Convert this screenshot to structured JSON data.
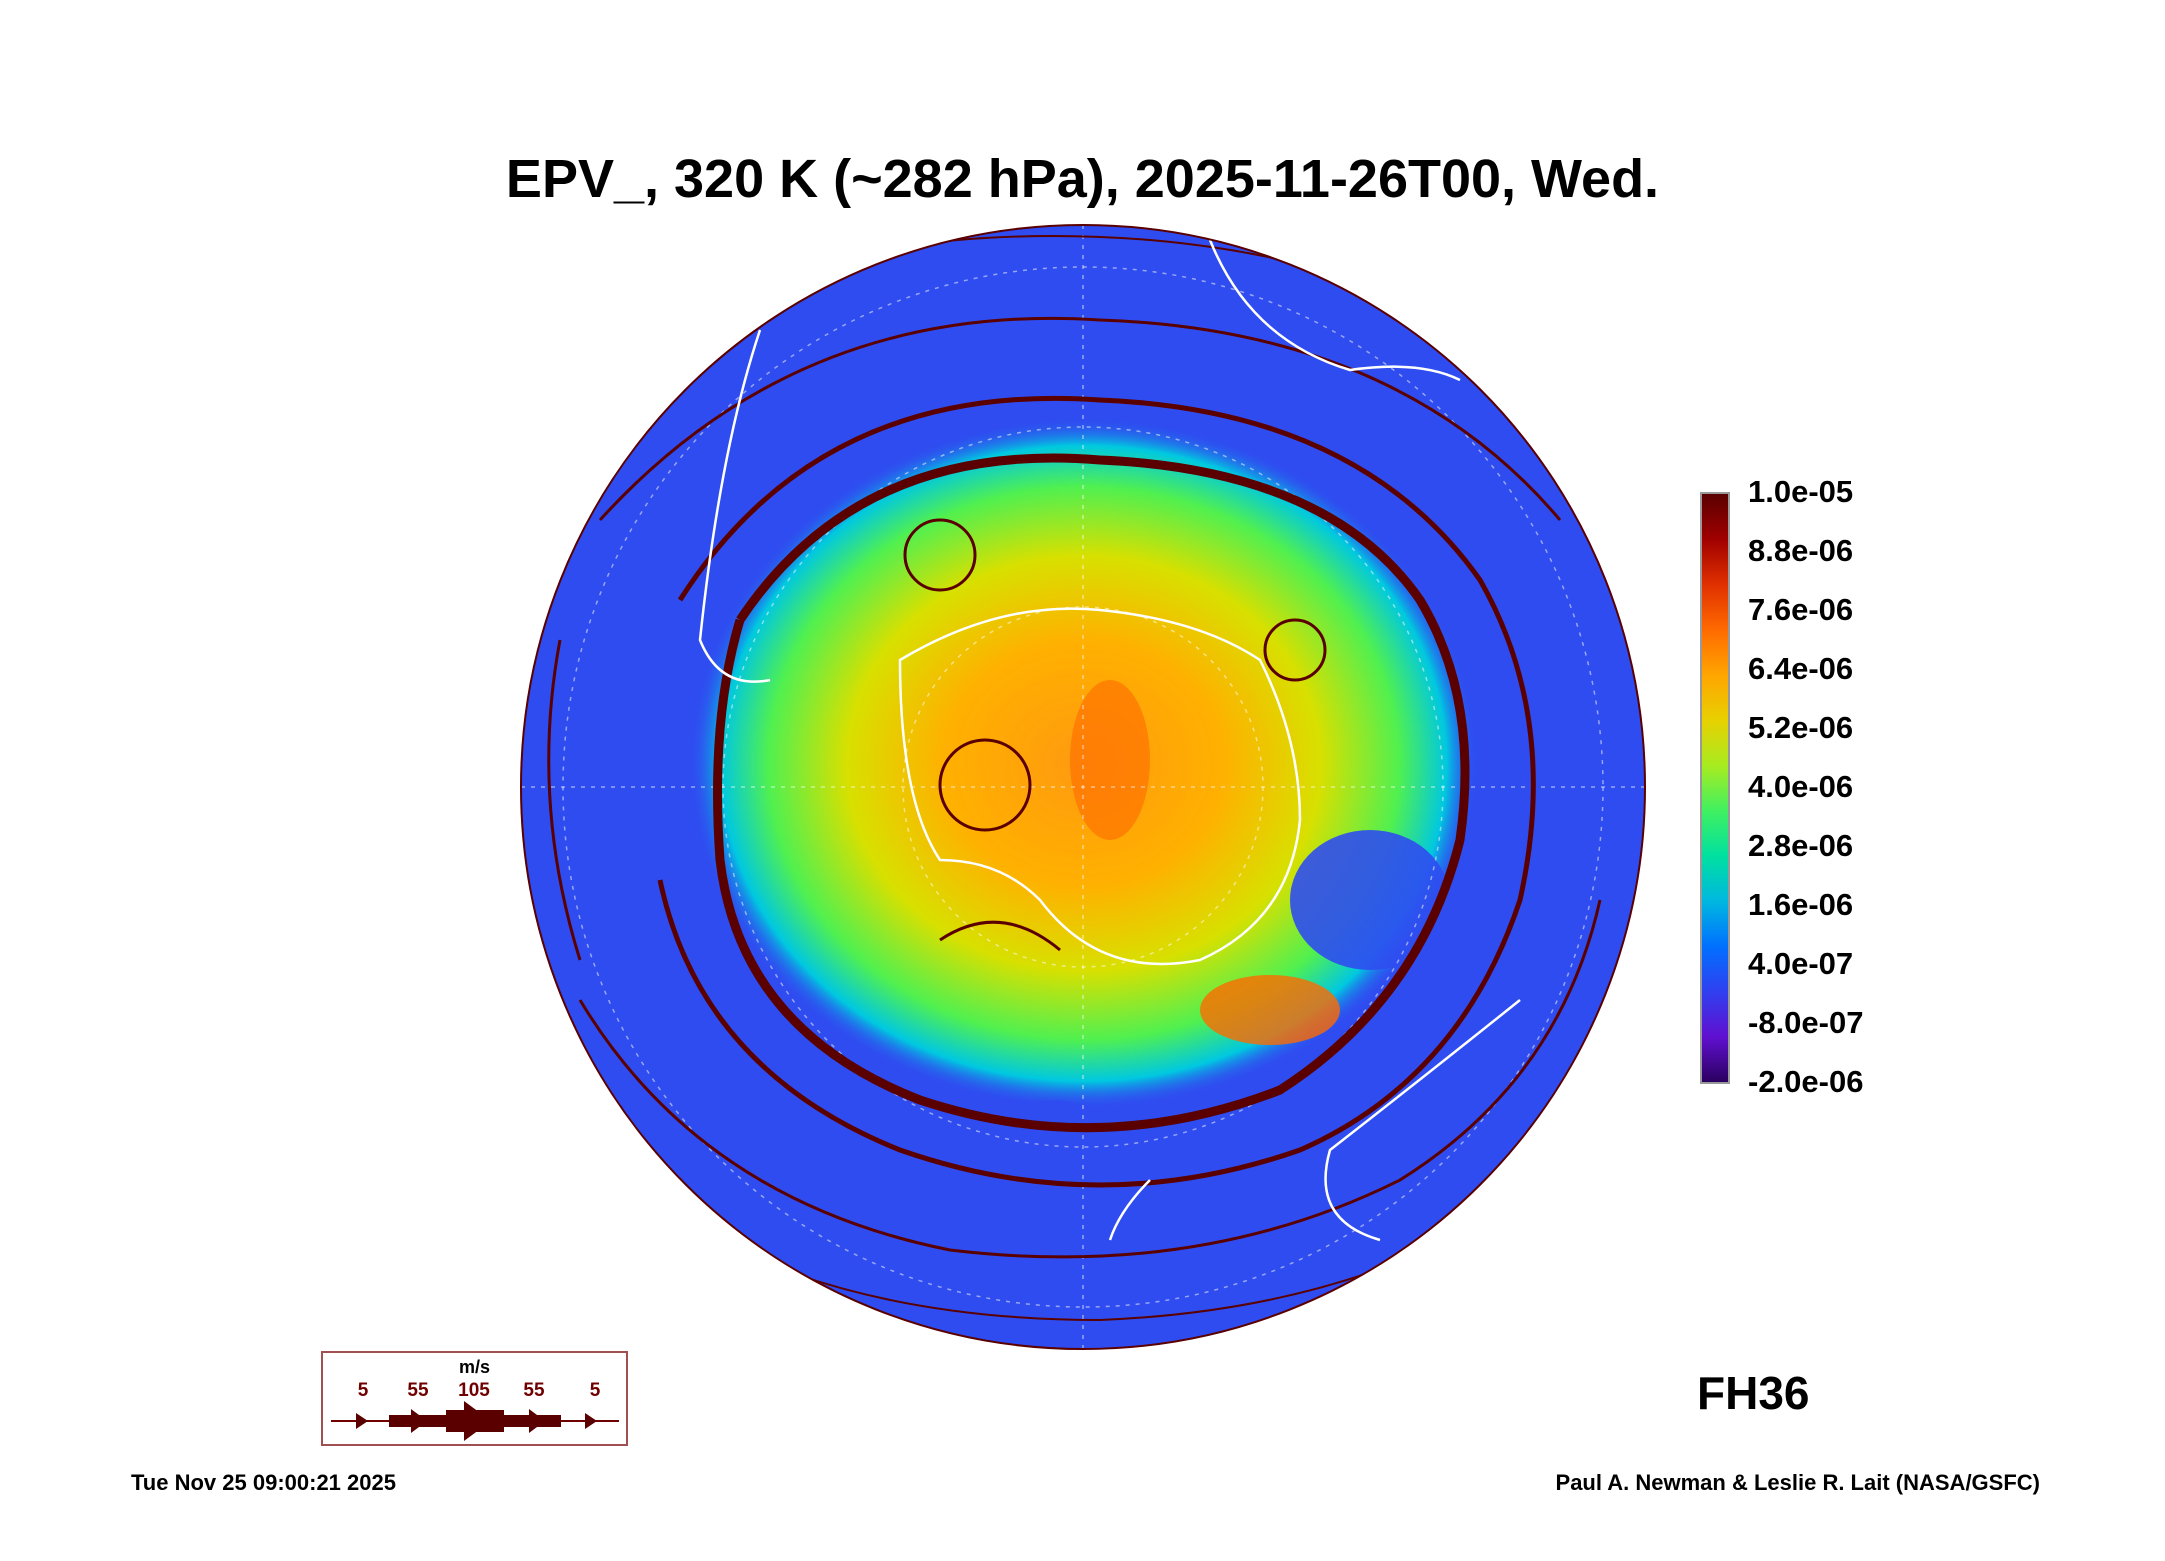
{
  "chart_data": {
    "type": "heatmap",
    "title": "EPV_, 320 K (~282 hPa), 2025-11-26T00, Wed.",
    "colorbar": {
      "ticks": [
        "1.0e-05",
        "8.8e-06",
        "7.6e-06",
        "6.4e-06",
        "5.2e-06",
        "4.0e-06",
        "2.8e-06",
        "1.6e-06",
        "4.0e-07",
        "-8.0e-07",
        "-2.0e-06"
      ],
      "range": [
        -2e-06,
        1e-05
      ],
      "placement": "right"
    },
    "wind_legend": {
      "unit": "m/s",
      "speeds": [
        "5",
        "55",
        "105",
        "55",
        "5"
      ]
    },
    "forecast_hour": "FH36",
    "colors": {
      "background": "#2f4cf0",
      "high": "#5a0000",
      "streamline": "#5a0000",
      "coast": "#ffffff"
    }
  },
  "footer": {
    "timestamp": "Tue Nov 25 09:00:21 2025",
    "credit": "Paul A. Newman & Leslie R. Lait (NASA/GSFC)"
  }
}
